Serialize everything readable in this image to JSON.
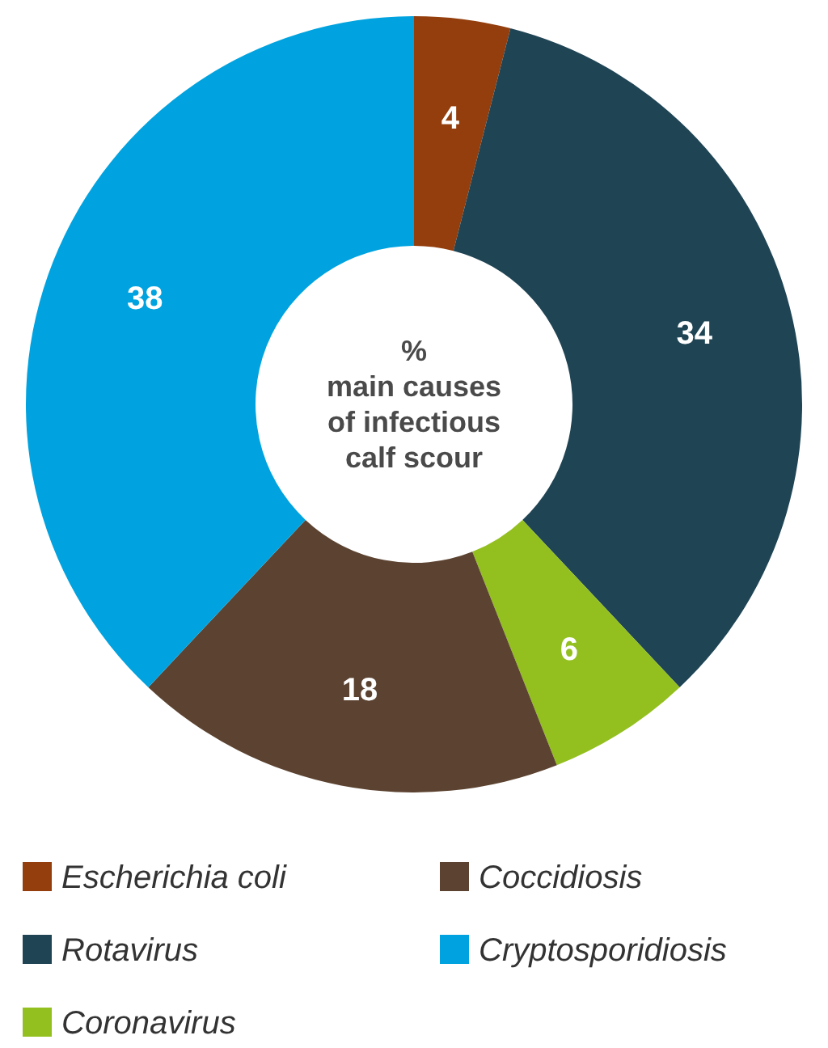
{
  "chart_data": {
    "type": "donut",
    "title": "%\nmain causes\nof infectious\ncalf scour",
    "categories": [
      "Escherichia coli",
      "Rotavirus",
      "Coronavirus",
      "Coccidiosis",
      "Cryptosporidiosis"
    ],
    "values": [
      4,
      34,
      6,
      18,
      38
    ],
    "colors": [
      "#933e0c",
      "#1f4454",
      "#93c01f",
      "#5c4331",
      "#00a3df"
    ],
    "data_labels": true,
    "legend": "bottom"
  }
}
